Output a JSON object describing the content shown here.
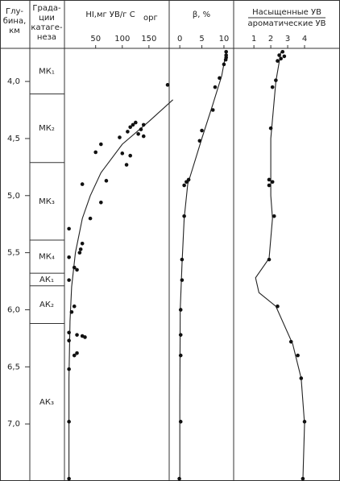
{
  "chart_data": {
    "type": "depth-profile",
    "depth_header": [
      "Глу-",
      "бина,",
      "км"
    ],
    "zone_header": [
      "Града-",
      "ции",
      "катаге-",
      "неза"
    ],
    "ylim": [
      3.71,
      7.5
    ],
    "yticks": [
      {
        "value": 4,
        "label": "4,0"
      },
      {
        "value": 4.5,
        "label": "4,5"
      },
      {
        "value": 5,
        "label": "5,0"
      },
      {
        "value": 5.5,
        "label": "5,5"
      },
      {
        "value": 6,
        "label": "6,0"
      },
      {
        "value": 6.5,
        "label": "6,5"
      },
      {
        "value": 7,
        "label": "7,0"
      }
    ],
    "zone_bounds": [
      4.11,
      4.71,
      5.39,
      5.68,
      5.79,
      6.12
    ],
    "zone_labels": [
      "МК₁",
      "МК₂",
      "МК₃",
      "МК₄",
      "АК₁",
      "АК₂",
      "АК₃"
    ],
    "panels": [
      {
        "title": "HI,мг УВ/г С",
        "title_sub": "орг",
        "xlim": [
          -8.5,
          188
        ],
        "xticks": [
          50,
          100,
          150
        ],
        "points": {
          "x": [
            185,
            125,
            120,
            140,
            115,
            135,
            110,
            130,
            140,
            95,
            60,
            50,
            100,
            115,
            108,
            70,
            25,
            60,
            40,
            0,
            25,
            22,
            20,
            0,
            10,
            15,
            0,
            10,
            5,
            0,
            15,
            25,
            30,
            0,
            15,
            10,
            0,
            0,
            0
          ],
          "depth": [
            4.03,
            4.36,
            4.38,
            4.38,
            4.4,
            4.42,
            4.44,
            4.46,
            4.48,
            4.49,
            4.55,
            4.62,
            4.63,
            4.65,
            4.73,
            4.87,
            4.9,
            5.06,
            5.2,
            5.29,
            5.42,
            5.47,
            5.5,
            5.54,
            5.63,
            5.65,
            5.74,
            5.97,
            6.02,
            6.2,
            6.22,
            6.23,
            6.24,
            6.27,
            6.38,
            6.4,
            6.52,
            6.98,
            7.48
          ]
        },
        "curve": {
          "x": [
            195,
            150,
            100,
            60,
            40,
            25,
            12,
            5,
            2,
            0,
            0
          ],
          "depth": [
            4.16,
            4.35,
            4.55,
            4.8,
            5.0,
            5.2,
            5.5,
            5.8,
            6.1,
            6.6,
            7.5
          ]
        }
      },
      {
        "title": "β, %",
        "xlim": [
          -2.4,
          12.2
        ],
        "xticks": [
          0,
          5,
          10
        ],
        "points": {
          "x": [
            10.5,
            10.5,
            10.5,
            10.4,
            10,
            9,
            8,
            7.5,
            5,
            4.5,
            2,
            1.5,
            1,
            1,
            0.5,
            0.5,
            0.2,
            0.2,
            0.2,
            0.2,
            -0.1
          ],
          "depth": [
            3.74,
            3.77,
            3.79,
            3.81,
            3.85,
            3.97,
            4.05,
            4.25,
            4.43,
            4.52,
            4.86,
            4.88,
            4.91,
            5.18,
            5.56,
            5.74,
            6.0,
            6.22,
            6.4,
            6.98,
            7.48
          ]
        },
        "curve": {
          "x": [
            10.5,
            9.5,
            7.5,
            5,
            3,
            1.8,
            1,
            0.5,
            0.1,
            0,
            0
          ],
          "depth": [
            3.74,
            3.95,
            4.2,
            4.5,
            4.75,
            4.9,
            5.2,
            5.6,
            6.0,
            6.8,
            7.5
          ]
        }
      },
      {
        "title": "Насыщенные УВ",
        "title_denominator": "ароматические УВ",
        "xlim": [
          -0.2,
          6.1
        ],
        "xticks": [
          1,
          2,
          3,
          4
        ],
        "points": {
          "x": [
            2.7,
            2.5,
            2.8,
            2.6,
            2.4,
            2.3,
            2.1,
            2.0,
            1.9,
            2.1,
            1.9,
            2.2,
            1.9,
            2.4,
            3.2,
            3.6,
            3.8,
            4.0,
            3.9
          ],
          "depth": [
            3.74,
            3.77,
            3.78,
            3.8,
            3.82,
            3.99,
            4.05,
            4.41,
            4.86,
            4.88,
            4.91,
            5.18,
            5.56,
            5.97,
            6.28,
            6.4,
            6.6,
            6.98,
            7.48
          ]
        },
        "curve": {
          "x": [
            2.6,
            2.3,
            2.0,
            2.0,
            2.1,
            1.9,
            1.1,
            1.3,
            2.3,
            3.3,
            3.8,
            4.0,
            3.9
          ],
          "depth": [
            3.74,
            4.0,
            4.5,
            5.0,
            5.2,
            5.55,
            5.72,
            5.85,
            5.97,
            6.3,
            6.6,
            7.0,
            7.5
          ]
        }
      }
    ]
  }
}
